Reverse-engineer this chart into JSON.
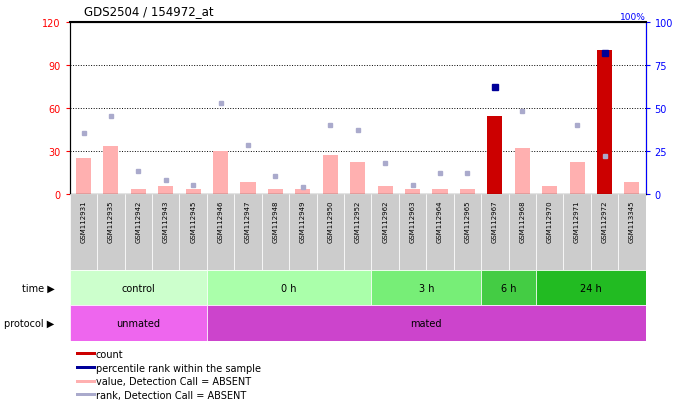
{
  "title": "GDS2504 / 154972_at",
  "samples": [
    "GSM112931",
    "GSM112935",
    "GSM112942",
    "GSM112943",
    "GSM112945",
    "GSM112946",
    "GSM112947",
    "GSM112948",
    "GSM112949",
    "GSM112950",
    "GSM112952",
    "GSM112962",
    "GSM112963",
    "GSM112964",
    "GSM112965",
    "GSM112967",
    "GSM112968",
    "GSM112970",
    "GSM112971",
    "GSM112972",
    "GSM113345"
  ],
  "value_absent": [
    25,
    33,
    3,
    5,
    3,
    30,
    8,
    3,
    3,
    27,
    22,
    5,
    3,
    3,
    3,
    54,
    32,
    5,
    22,
    100,
    8
  ],
  "rank_absent": [
    35,
    45,
    13,
    8,
    5,
    53,
    28,
    10,
    4,
    40,
    37,
    18,
    5,
    12,
    12,
    null,
    48,
    null,
    40,
    22,
    null
  ],
  "count_present": [
    null,
    null,
    null,
    null,
    null,
    null,
    null,
    null,
    null,
    null,
    null,
    null,
    null,
    null,
    null,
    54,
    null,
    null,
    null,
    100,
    null
  ],
  "percentile_present": [
    null,
    null,
    null,
    null,
    null,
    null,
    null,
    null,
    null,
    null,
    null,
    null,
    null,
    null,
    null,
    62,
    null,
    null,
    null,
    82,
    null
  ],
  "bar_absent_color": "#FFB0B0",
  "bar_present_color": "#CC0000",
  "dot_absent_color": "#AAAACC",
  "dot_present_color": "#000099",
  "left_ylim": [
    0,
    120
  ],
  "right_ylim": [
    0,
    100
  ],
  "left_yticks": [
    0,
    30,
    60,
    90,
    120
  ],
  "right_yticks": [
    0,
    25,
    50,
    75,
    100
  ],
  "time_colors": [
    "#CCFFCC",
    "#AAFFAA",
    "#77EE77",
    "#44CC44",
    "#22BB22"
  ],
  "time_groups": [
    {
      "label": "control",
      "start": 0,
      "end": 5
    },
    {
      "label": "0 h",
      "start": 5,
      "end": 11
    },
    {
      "label": "3 h",
      "start": 11,
      "end": 15
    },
    {
      "label": "6 h",
      "start": 15,
      "end": 17
    },
    {
      "label": "24 h",
      "start": 17,
      "end": 21
    }
  ],
  "protocol_groups": [
    {
      "label": "unmated",
      "start": 0,
      "end": 5,
      "color": "#EE66EE"
    },
    {
      "label": "mated",
      "start": 5,
      "end": 21,
      "color": "#CC44CC"
    }
  ],
  "legend_items": [
    {
      "color": "#CC0000",
      "label": "count",
      "marker": "s"
    },
    {
      "color": "#000099",
      "label": "percentile rank within the sample",
      "marker": "s"
    },
    {
      "color": "#FFB0B0",
      "label": "value, Detection Call = ABSENT",
      "marker": "s"
    },
    {
      "color": "#AAAACC",
      "label": "rank, Detection Call = ABSENT",
      "marker": "s"
    }
  ]
}
